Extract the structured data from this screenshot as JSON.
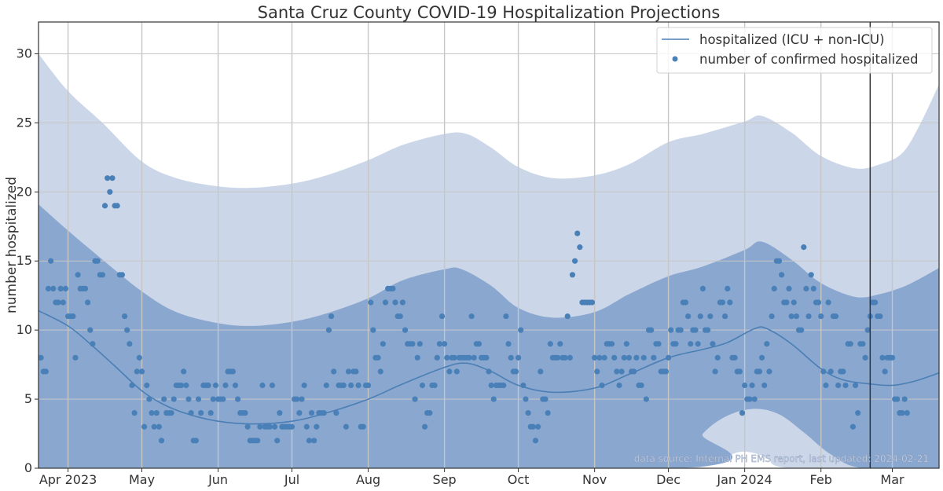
{
  "chart_data": {
    "type": "line",
    "title": "Santa Cruz County COVID-19 Hospitalization Projections",
    "xlabel": "",
    "ylabel": "number hospitalized",
    "x_range": [
      "2023-03-20",
      "2024-03-20"
    ],
    "ylim": [
      0,
      32.3
    ],
    "yticks": [
      0,
      5,
      10,
      15,
      20,
      25,
      30
    ],
    "xticks": [
      {
        "date": "2023-04-01",
        "label": "Apr 2023"
      },
      {
        "date": "2023-05-01",
        "label": "May"
      },
      {
        "date": "2023-06-01",
        "label": "Jun"
      },
      {
        "date": "2023-07-01",
        "label": "Jul"
      },
      {
        "date": "2023-08-01",
        "label": "Aug"
      },
      {
        "date": "2023-09-01",
        "label": "Sep"
      },
      {
        "date": "2023-10-01",
        "label": "Oct"
      },
      {
        "date": "2023-11-01",
        "label": "Nov"
      },
      {
        "date": "2023-12-01",
        "label": "Dec"
      },
      {
        "date": "2024-01-01",
        "label": "Jan 2024"
      },
      {
        "date": "2024-02-01",
        "label": "Feb"
      },
      {
        "date": "2024-03-01",
        "label": "Mar"
      }
    ],
    "grid": true,
    "legend_position": "top-right",
    "legend": [
      {
        "label": "hospitalized (ICU + non-ICU)",
        "kind": "line"
      },
      {
        "label": "number of confirmed hospitalized",
        "kind": "marker"
      }
    ],
    "vline_date": "2024-02-21",
    "annotation": "data source: Internal PH EMS report, last updated: 2024-02-21",
    "colors": {
      "line": "#4a7fb5",
      "points": "#4a80b8",
      "band_outer": "#cbd6e8",
      "band_inner": "#8aa7cf",
      "grid": "#c6c6c6",
      "axis": "#333333",
      "vline": "#333333"
    },
    "series": [
      {
        "name": "hospitalized (ICU + non-ICU)",
        "kind": "line",
        "points": [
          [
            "2023-03-20",
            11.4
          ],
          [
            "2023-04-01",
            10.3
          ],
          [
            "2023-04-10",
            9.0
          ],
          [
            "2023-04-20",
            7.4
          ],
          [
            "2023-05-01",
            5.6
          ],
          [
            "2023-05-10",
            4.6
          ],
          [
            "2023-05-20",
            3.9
          ],
          [
            "2023-06-01",
            3.4
          ],
          [
            "2023-06-15",
            3.2
          ],
          [
            "2023-07-01",
            3.4
          ],
          [
            "2023-07-15",
            4.0
          ],
          [
            "2023-08-01",
            5.0
          ],
          [
            "2023-08-15",
            6.1
          ],
          [
            "2023-09-01",
            7.3
          ],
          [
            "2023-09-10",
            7.6
          ],
          [
            "2023-09-20",
            7.0
          ],
          [
            "2023-10-01",
            6.0
          ],
          [
            "2023-10-15",
            5.5
          ],
          [
            "2023-11-01",
            5.8
          ],
          [
            "2023-11-15",
            6.8
          ],
          [
            "2023-12-01",
            8.0
          ],
          [
            "2023-12-15",
            8.6
          ],
          [
            "2023-12-25",
            9.1
          ],
          [
            "2024-01-05",
            10.1
          ],
          [
            "2024-01-10",
            10.1
          ],
          [
            "2024-01-20",
            9.0
          ],
          [
            "2024-02-01",
            7.2
          ],
          [
            "2024-02-10",
            6.4
          ],
          [
            "2024-02-21",
            6.1
          ],
          [
            "2024-03-01",
            6.0
          ],
          [
            "2024-03-10",
            6.3
          ],
          [
            "2024-03-20",
            6.9
          ]
        ]
      },
      {
        "name": "outer interval",
        "kind": "band",
        "upper": [
          [
            "2023-03-20",
            30.0
          ],
          [
            "2023-04-01",
            27.3
          ],
          [
            "2023-04-15",
            25.0
          ],
          [
            "2023-05-01",
            22.2
          ],
          [
            "2023-05-15",
            21.0
          ],
          [
            "2023-06-01",
            20.4
          ],
          [
            "2023-06-15",
            20.3
          ],
          [
            "2023-07-01",
            20.6
          ],
          [
            "2023-07-15",
            21.2
          ],
          [
            "2023-08-01",
            22.3
          ],
          [
            "2023-08-15",
            23.4
          ],
          [
            "2023-09-01",
            24.2
          ],
          [
            "2023-09-10",
            24.2
          ],
          [
            "2023-09-20",
            23.2
          ],
          [
            "2023-10-01",
            21.8
          ],
          [
            "2023-10-15",
            21.0
          ],
          [
            "2023-11-01",
            21.2
          ],
          [
            "2023-11-15",
            22.0
          ],
          [
            "2023-12-01",
            23.6
          ],
          [
            "2023-12-15",
            24.2
          ],
          [
            "2024-01-01",
            25.1
          ],
          [
            "2024-01-08",
            25.5
          ],
          [
            "2024-01-20",
            24.3
          ],
          [
            "2024-02-01",
            22.6
          ],
          [
            "2024-02-15",
            21.7
          ],
          [
            "2024-02-25",
            22.0
          ],
          [
            "2024-03-05",
            22.8
          ],
          [
            "2024-03-12",
            24.8
          ],
          [
            "2024-03-20",
            27.8
          ]
        ],
        "lower": [
          [
            "2023-03-20",
            4.0
          ],
          [
            "2023-03-28",
            3.8
          ],
          [
            "2023-04-05",
            3.0
          ],
          [
            "2023-04-15",
            1.6
          ],
          [
            "2023-04-25",
            0.0
          ],
          [
            "2023-08-20",
            0.0
          ],
          [
            "2023-09-01",
            0.6
          ],
          [
            "2023-09-12",
            1.3
          ],
          [
            "2023-09-20",
            1.1
          ],
          [
            "2023-10-01",
            0.0
          ],
          [
            "2023-12-10",
            0.0
          ],
          [
            "2023-12-25",
            0.9
          ],
          [
            "2024-01-01",
            1.2
          ],
          [
            "2024-01-10",
            0.8
          ],
          [
            "2024-01-20",
            0.0
          ],
          [
            "2024-03-20",
            0.0
          ]
        ]
      },
      {
        "name": "inner interval",
        "kind": "band",
        "upper": [
          [
            "2023-03-20",
            19.1
          ],
          [
            "2023-04-01",
            17.2
          ],
          [
            "2023-04-15",
            15.1
          ],
          [
            "2023-05-01",
            12.8
          ],
          [
            "2023-05-15",
            11.3
          ],
          [
            "2023-06-01",
            10.5
          ],
          [
            "2023-06-15",
            10.3
          ],
          [
            "2023-07-01",
            10.6
          ],
          [
            "2023-07-15",
            11.2
          ],
          [
            "2023-08-01",
            12.3
          ],
          [
            "2023-08-15",
            13.6
          ],
          [
            "2023-09-01",
            14.4
          ],
          [
            "2023-09-08",
            14.4
          ],
          [
            "2023-09-20",
            13.2
          ],
          [
            "2023-10-01",
            11.6
          ],
          [
            "2023-10-15",
            10.9
          ],
          [
            "2023-11-01",
            11.3
          ],
          [
            "2023-11-15",
            12.6
          ],
          [
            "2023-12-01",
            13.9
          ],
          [
            "2023-12-15",
            14.6
          ],
          [
            "2024-01-01",
            15.8
          ],
          [
            "2024-01-08",
            16.4
          ],
          [
            "2024-01-20",
            15.1
          ],
          [
            "2024-02-01",
            13.4
          ],
          [
            "2024-02-15",
            12.4
          ],
          [
            "2024-02-25",
            12.6
          ],
          [
            "2024-03-05",
            13.1
          ],
          [
            "2024-03-12",
            13.7
          ],
          [
            "2024-03-20",
            14.5
          ]
        ],
        "lower": [
          [
            "2023-03-20",
            0.0
          ],
          [
            "2023-12-05",
            0.0
          ],
          [
            "2023-12-15",
            2.5
          ],
          [
            "2023-12-25",
            3.8
          ],
          [
            "2024-01-05",
            4.3
          ],
          [
            "2024-01-15",
            3.9
          ],
          [
            "2024-01-25",
            2.6
          ],
          [
            "2024-02-05",
            1.0
          ],
          [
            "2024-02-18",
            0.0
          ],
          [
            "2024-03-20",
            0.0
          ]
        ]
      },
      {
        "name": "number of confirmed hospitalized",
        "kind": "scatter",
        "start_date": "2023-03-20",
        "values": [
          8,
          8,
          7,
          7,
          13,
          15,
          13,
          12,
          12,
          13,
          12,
          13,
          11,
          11,
          11,
          8,
          14,
          13,
          13,
          13,
          12,
          10,
          9,
          15,
          15,
          14,
          14,
          19,
          21,
          20,
          21,
          19,
          19,
          14,
          14,
          11,
          10,
          9,
          6,
          4,
          7,
          8,
          7,
          3,
          6,
          5,
          4,
          3,
          4,
          3,
          2,
          5,
          4,
          4,
          4,
          5,
          6,
          6,
          6,
          7,
          6,
          5,
          4,
          2,
          2,
          5,
          4,
          6,
          6,
          6,
          4,
          5,
          6,
          5,
          5,
          5,
          6,
          7,
          7,
          7,
          6,
          5,
          4,
          4,
          4,
          3,
          2,
          2,
          2,
          2,
          3,
          6,
          3,
          3,
          3,
          6,
          3,
          2,
          4,
          3,
          3,
          3,
          3,
          3,
          5,
          5,
          4,
          5,
          6,
          3,
          2,
          4,
          2,
          3,
          4,
          4,
          4,
          6,
          10,
          11,
          7,
          4,
          6,
          6,
          6,
          3,
          7,
          6,
          7,
          7,
          6,
          3,
          3,
          6,
          6,
          12,
          10,
          8,
          8,
          7,
          9,
          12,
          13,
          13,
          13,
          12,
          11,
          11,
          12,
          10,
          9,
          9,
          9,
          5,
          8,
          9,
          6,
          3,
          4,
          4,
          6,
          6,
          8,
          9,
          11,
          9,
          8,
          7,
          8,
          8,
          7,
          8,
          8,
          8,
          8,
          8,
          11,
          8,
          9,
          9,
          8,
          8,
          8,
          7,
          6,
          5,
          6,
          6,
          6,
          6,
          11,
          9,
          8,
          7,
          7,
          8,
          10,
          6,
          5,
          4,
          3,
          3,
          2,
          3,
          7,
          5,
          5,
          4,
          9,
          8,
          8,
          8,
          9,
          8,
          8,
          11,
          8,
          14,
          15,
          17,
          16,
          12,
          12,
          12,
          12,
          12,
          8,
          7,
          8,
          6,
          8,
          9,
          9,
          9,
          8,
          7,
          6,
          7,
          8,
          9,
          8,
          7,
          7,
          8,
          6,
          6,
          8,
          5,
          10,
          10,
          8,
          9,
          9,
          7,
          7,
          7,
          8,
          10,
          9,
          9,
          10,
          10,
          12,
          12,
          11,
          9,
          10,
          10,
          9,
          11,
          13,
          10,
          10,
          11,
          9,
          7,
          8,
          12,
          12,
          11,
          13,
          12,
          8,
          8,
          7,
          7,
          4,
          6,
          5,
          5,
          6,
          5,
          7,
          7,
          8,
          6,
          9,
          7,
          11,
          13,
          15,
          15,
          14,
          12,
          12,
          13,
          11,
          12,
          11,
          10,
          10,
          16,
          13,
          11,
          14,
          13,
          12,
          12,
          11,
          7,
          6,
          12,
          7,
          11,
          11,
          6,
          7,
          7,
          6,
          9,
          9,
          3,
          6,
          4,
          9,
          9,
          8,
          10,
          11,
          12,
          12,
          11,
          11,
          8,
          7,
          8,
          8,
          8,
          5,
          5,
          4,
          4,
          5,
          4
        ]
      }
    ]
  }
}
